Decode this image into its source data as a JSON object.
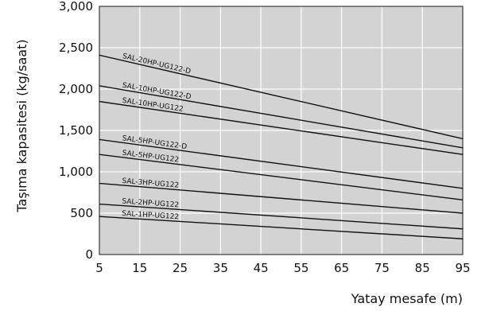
{
  "chart_data": {
    "type": "line",
    "title": "",
    "xlabel": "Yatay mesafe (m)",
    "ylabel": "Taşıma kapasitesi (kg/saat)",
    "xlim": [
      5,
      95
    ],
    "ylim": [
      0,
      3000
    ],
    "xticks": [
      5,
      15,
      25,
      35,
      45,
      55,
      65,
      75,
      85,
      95
    ],
    "yticks": [
      0,
      500,
      1000,
      1500,
      2000,
      2500,
      3000
    ],
    "xtick_labels": [
      "5",
      "15",
      "25",
      "35",
      "45",
      "55",
      "65",
      "75",
      "85",
      "95"
    ],
    "ytick_labels": [
      "0",
      "500",
      "1,000",
      "1,500",
      "2,000",
      "2,500",
      "3,000"
    ],
    "grid": true,
    "plot_background": "#d3d3d3",
    "grid_color": "#ffffff",
    "line_color": "#111111",
    "series": [
      {
        "name": "SAL-20HP-UG122-D",
        "x": [
          5,
          95
        ],
        "y": [
          2410,
          1400
        ]
      },
      {
        "name": "SAL-10HP-UG122-D",
        "x": [
          5,
          95
        ],
        "y": [
          2040,
          1290
        ]
      },
      {
        "name": "SAL-10HP-UG122",
        "x": [
          5,
          95
        ],
        "y": [
          1850,
          1210
        ]
      },
      {
        "name": "SAL-5HP-UG122-D",
        "x": [
          5,
          95
        ],
        "y": [
          1390,
          800
        ]
      },
      {
        "name": "SAL-5HP-UG122",
        "x": [
          5,
          95
        ],
        "y": [
          1210,
          660
        ]
      },
      {
        "name": "SAL-3HP-UG122",
        "x": [
          5,
          95
        ],
        "y": [
          860,
          500
        ]
      },
      {
        "name": "SAL-2HP-UG122",
        "x": [
          5,
          95
        ],
        "y": [
          610,
          310
        ]
      },
      {
        "name": "SAL-1HP-UG122",
        "x": [
          5,
          95
        ],
        "y": [
          460,
          190
        ]
      }
    ]
  }
}
